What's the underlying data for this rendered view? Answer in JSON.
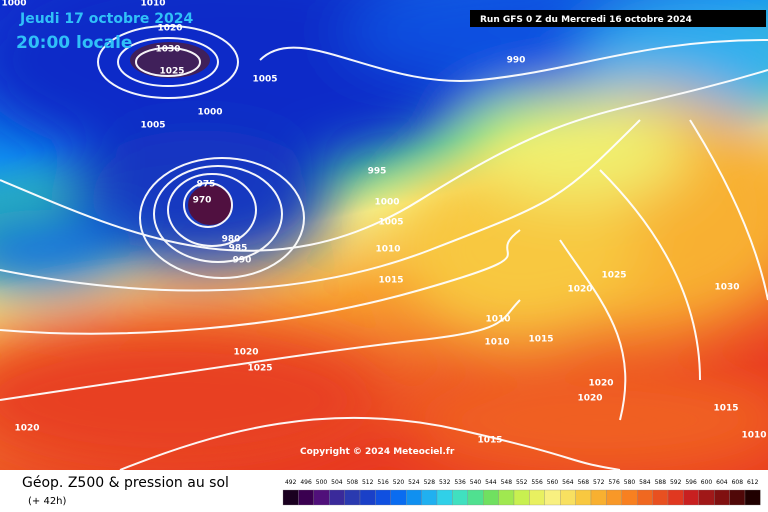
{
  "header": {
    "date": "Jeudi 17 octobre 2024",
    "time": "20:00 locale",
    "run": "Run GFS 0 Z du Mercredi 16 octobre 2024"
  },
  "copyright": "Copyright © 2024 Meteociel.fr",
  "footer": {
    "title": "Géop. Z500 & pression au sol",
    "lead": "(+ 42h)"
  },
  "isobar_labels": [
    1000,
    1010,
    1020,
    1030,
    1025,
    1005,
    1000,
    1005,
    990,
    995,
    975,
    970,
    980,
    985,
    990,
    1000,
    1005,
    1010,
    1015,
    1020,
    1025,
    1020,
    1025,
    1020,
    1030,
    1010,
    1010,
    1015,
    1020,
    1020,
    1015,
    1010,
    1015
  ],
  "legend": {
    "values": [
      492,
      496,
      500,
      504,
      508,
      512,
      516,
      520,
      524,
      528,
      532,
      536,
      540,
      544,
      548,
      552,
      556,
      560,
      564,
      568,
      572,
      576,
      580,
      584,
      588,
      592,
      596,
      600,
      604,
      608,
      612
    ],
    "colors": [
      "#1a0020",
      "#3a0050",
      "#50107a",
      "#3a2a9a",
      "#2a3ab0",
      "#1a40c8",
      "#1050e0",
      "#0a6cf0",
      "#1090f0",
      "#20b0f0",
      "#30d0e8",
      "#40e0c0",
      "#50e090",
      "#70e060",
      "#a0e850",
      "#c8f050",
      "#e8f060",
      "#f8f080",
      "#f8e060",
      "#f8c840",
      "#f8b030",
      "#f89828",
      "#f88020",
      "#f06820",
      "#e85020",
      "#e03820",
      "#c82020",
      "#a01818",
      "#801010",
      "#500808",
      "#200000"
    ]
  }
}
